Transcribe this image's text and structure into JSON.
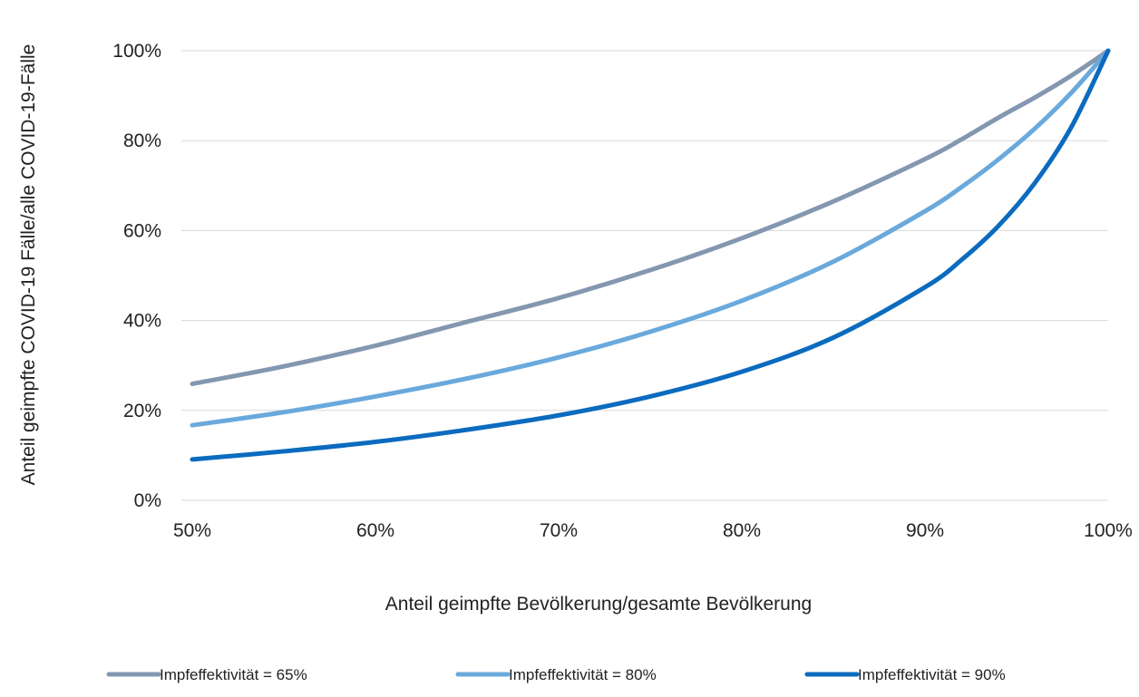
{
  "chart_data": {
    "type": "line",
    "xlabel": "Anteil geimpfte Bevölkerung/gesamte Bevölkerung",
    "ylabel": "Anteil geimpfte COVID-19 Fälle/alle COVID-19-Fälle",
    "xlim": [
      0.5,
      1.0
    ],
    "ylim": [
      0,
      1.0
    ],
    "x_ticks": [
      {
        "value": 0.5,
        "label": "50%"
      },
      {
        "value": 0.6,
        "label": "60%"
      },
      {
        "value": 0.7,
        "label": "70%"
      },
      {
        "value": 0.8,
        "label": "80%"
      },
      {
        "value": 0.9,
        "label": "90%"
      },
      {
        "value": 1.0,
        "label": "100%"
      }
    ],
    "y_ticks": [
      {
        "value": 0.0,
        "label": "0%"
      },
      {
        "value": 0.2,
        "label": "20%"
      },
      {
        "value": 0.4,
        "label": "40%"
      },
      {
        "value": 0.6,
        "label": "60%"
      },
      {
        "value": 0.8,
        "label": "80%"
      },
      {
        "value": 1.0,
        "label": "100%"
      }
    ],
    "grid": "horizontal",
    "legend_position": "bottom",
    "x": [
      0.5,
      0.55,
      0.6,
      0.65,
      0.7,
      0.75,
      0.8,
      0.85,
      0.9,
      0.92,
      0.94,
      0.96,
      0.98,
      1.0
    ],
    "series": [
      {
        "name": "Impfeffektivität = 65%",
        "color": "#8497b0",
        "values": [
          0.259,
          0.298,
          0.344,
          0.397,
          0.45,
          0.512,
          0.583,
          0.665,
          0.759,
          0.803,
          0.851,
          0.896,
          0.945,
          1.0
        ]
      },
      {
        "name": "Impfeffektivität = 80%",
        "color": "#6aa9dc",
        "values": [
          0.167,
          0.196,
          0.231,
          0.271,
          0.318,
          0.375,
          0.444,
          0.531,
          0.643,
          0.697,
          0.758,
          0.827,
          0.907,
          1.0
        ]
      },
      {
        "name": "Impfeffektivität = 90%",
        "color": "#0b6bbf",
        "values": [
          0.091,
          0.109,
          0.13,
          0.157,
          0.189,
          0.231,
          0.286,
          0.362,
          0.474,
          0.535,
          0.61,
          0.706,
          0.831,
          1.0
        ]
      }
    ]
  }
}
